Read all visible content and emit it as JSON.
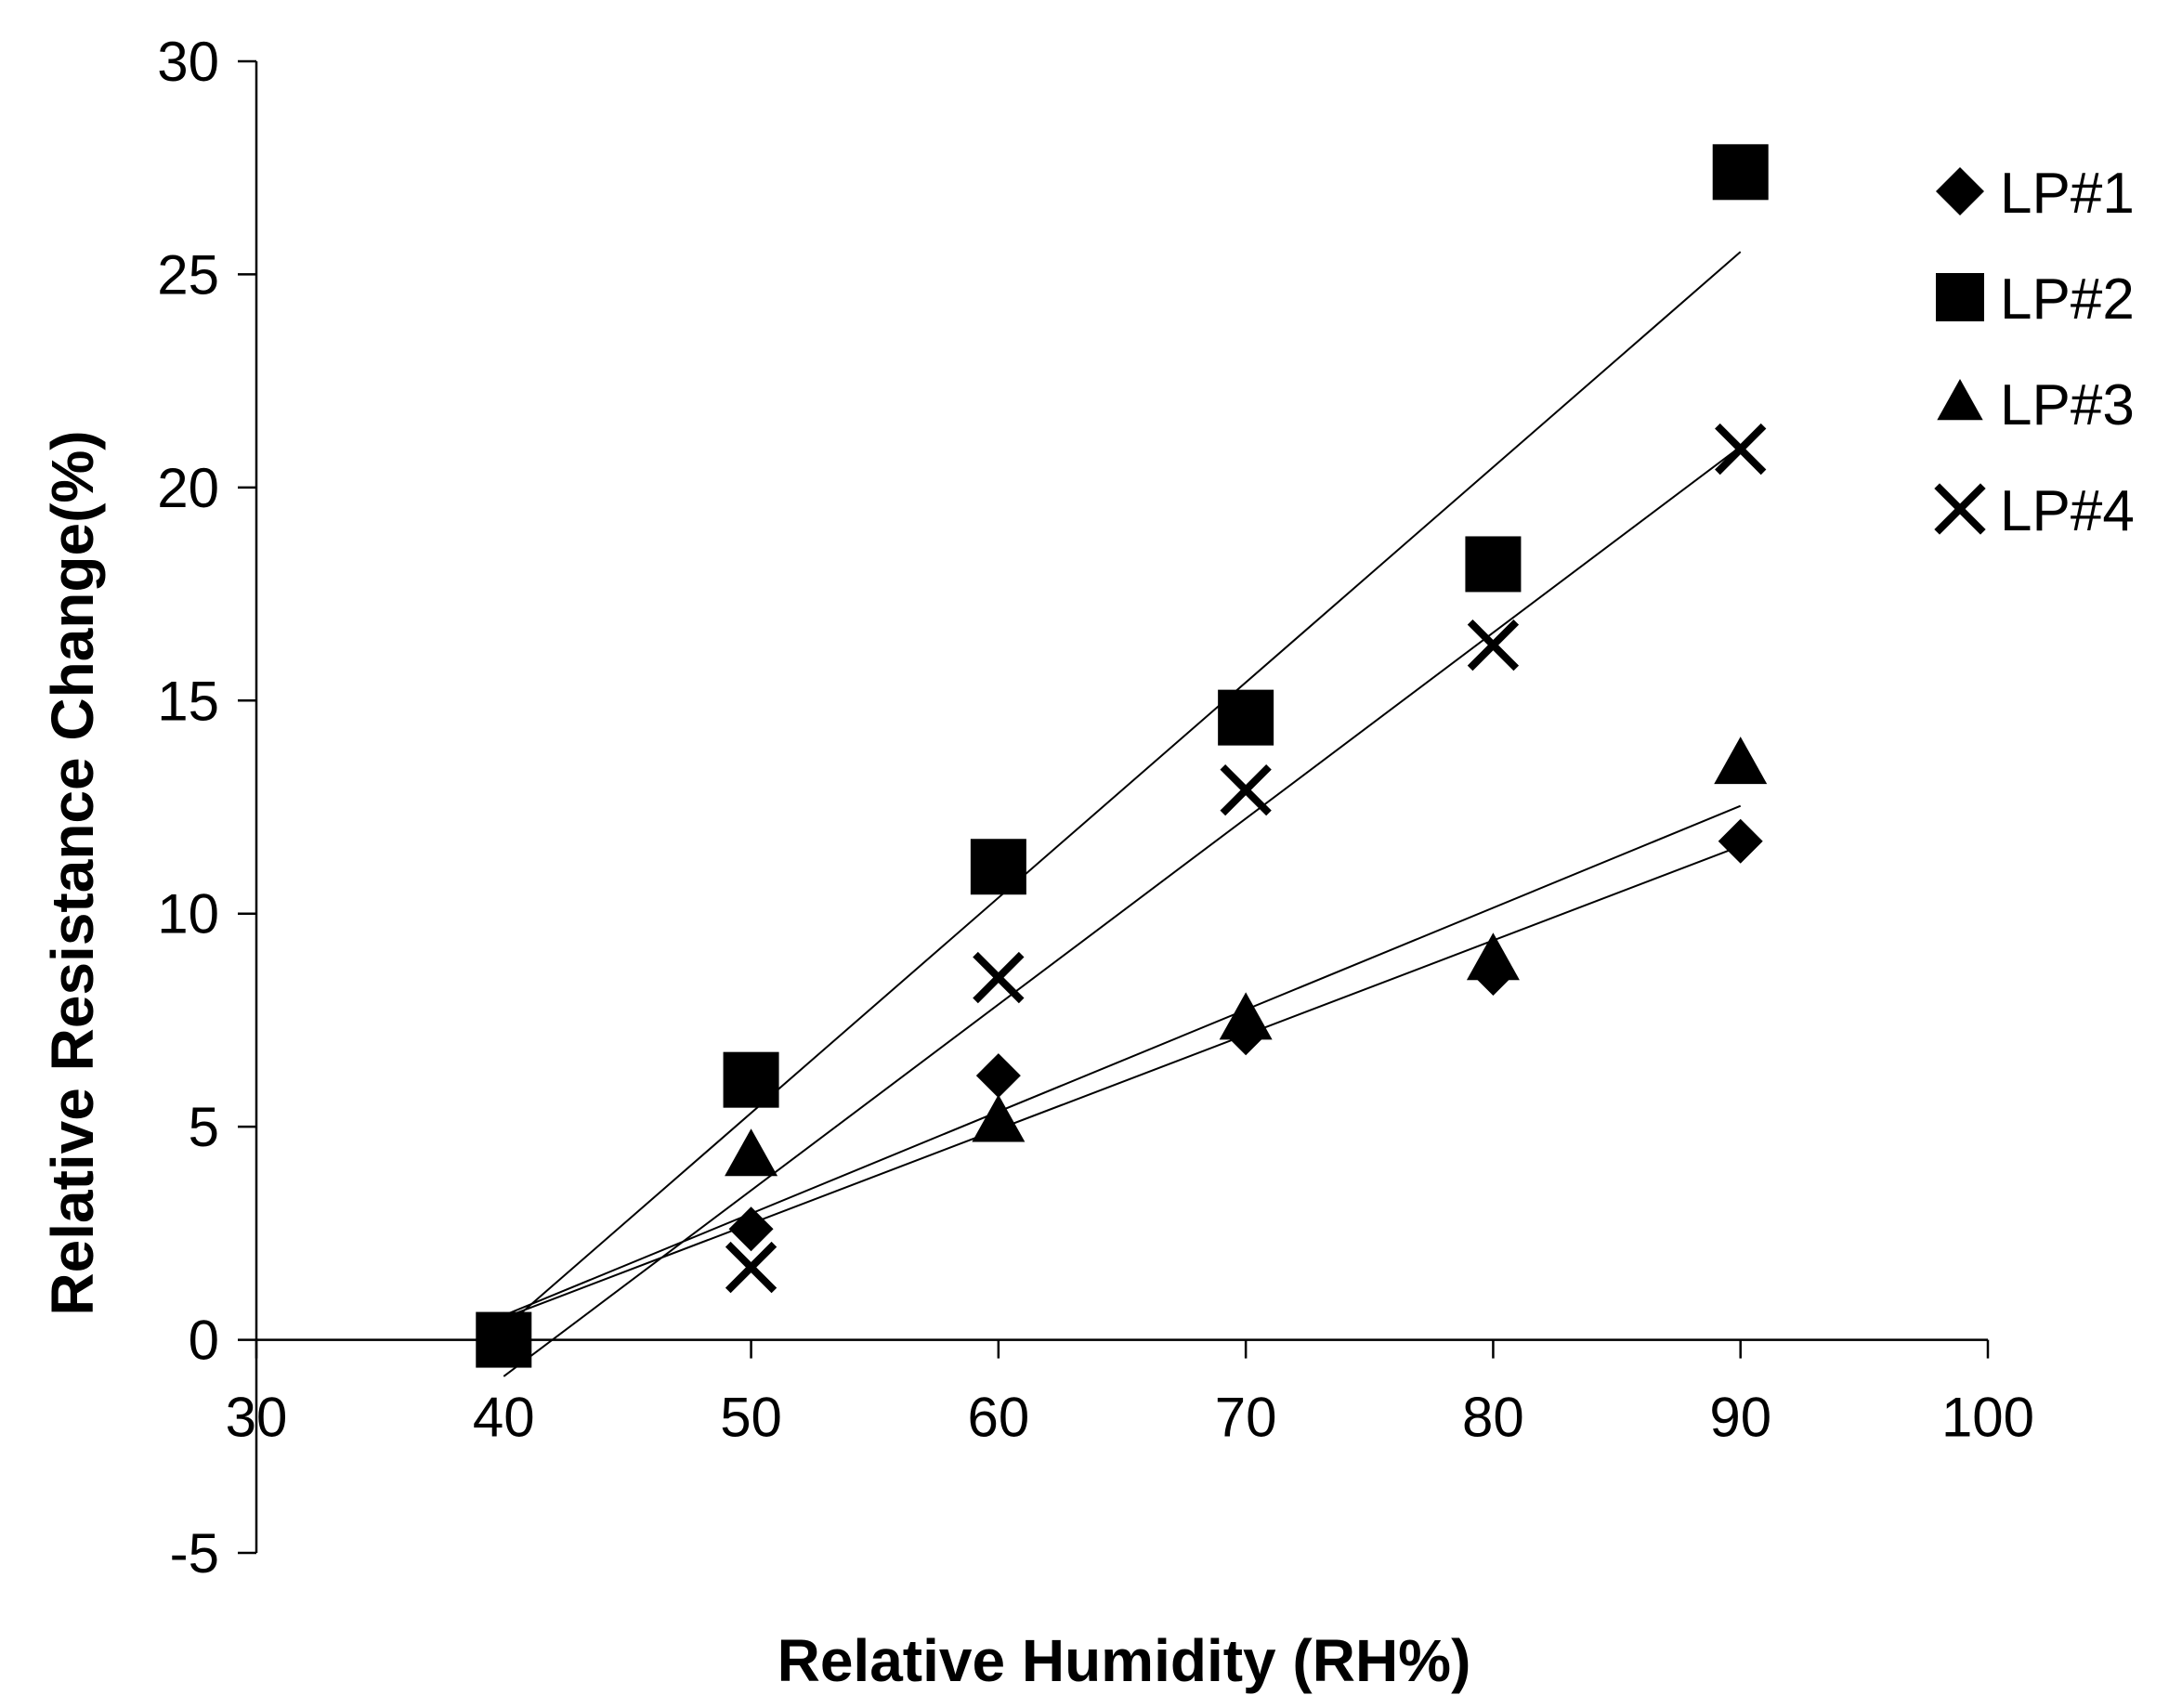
{
  "chart_data": {
    "type": "scatter",
    "title": "",
    "xlabel": "Relative Humidity (RH%)",
    "ylabel": "Relative Resistance Change(%)",
    "xlim": [
      30,
      100
    ],
    "ylim": [
      -5,
      30
    ],
    "xticks": [
      30,
      40,
      50,
      60,
      70,
      80,
      90,
      100
    ],
    "yticks": [
      -5,
      0,
      5,
      10,
      15,
      20,
      25,
      30
    ],
    "x": [
      40,
      50,
      60,
      70,
      80,
      90
    ],
    "legend_position": "right",
    "series": [
      {
        "name": "LP#1",
        "marker": "diamond",
        "values": [
          0,
          2.6,
          6.2,
          7.2,
          8.6,
          11.7
        ]
      },
      {
        "name": "LP#2",
        "marker": "square",
        "values": [
          0,
          6.1,
          11.1,
          14.6,
          18.2,
          27.4
        ]
      },
      {
        "name": "LP#3",
        "marker": "triangle",
        "values": [
          0,
          4.3,
          5.1,
          7.5,
          8.9,
          13.5
        ]
      },
      {
        "name": "LP#4",
        "marker": "cross",
        "values": [
          0,
          1.7,
          8.5,
          12.9,
          16.3,
          20.9
        ]
      }
    ],
    "trendlines": "linear"
  }
}
